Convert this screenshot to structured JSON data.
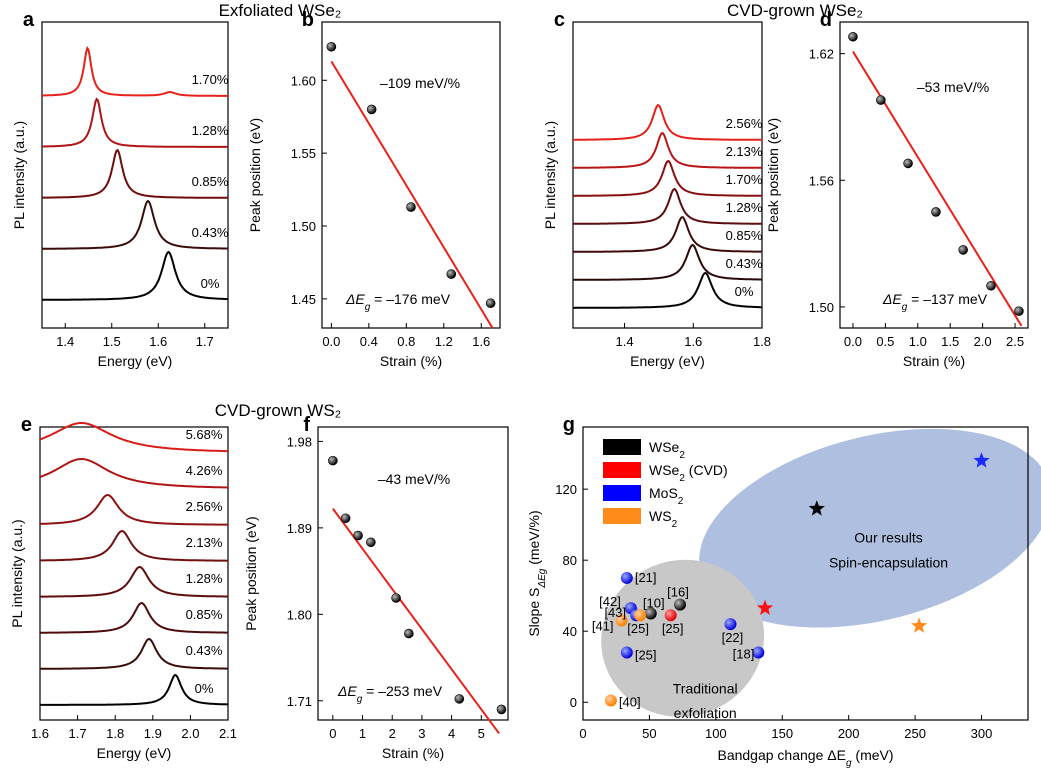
{
  "chart_data": [
    {
      "panel": "a",
      "group_title": "Exfoliated WSe₂",
      "type": "line",
      "xlabel": "Energy (eV)",
      "ylabel": "PL intensity (a.u.)",
      "xlim": [
        1.35,
        1.75
      ],
      "xticks": [
        1.4,
        1.5,
        1.6,
        1.7
      ],
      "series": [
        {
          "name": "0%",
          "color": "#000000",
          "peak_eV": 1.622,
          "width": 0.018,
          "shoulder": null
        },
        {
          "name": "0.43%",
          "color": "#3a0c0a",
          "peak_eV": 1.578,
          "width": 0.017,
          "shoulder": null
        },
        {
          "name": "0.85%",
          "color": "#6e0d0d",
          "peak_eV": 1.512,
          "width": 0.014,
          "shoulder": null
        },
        {
          "name": "1.28%",
          "color": "#b01414",
          "peak_eV": 1.468,
          "width": 0.012,
          "shoulder": null
        },
        {
          "name": "1.70%",
          "color": "#e8221a",
          "peak_eV": 1.448,
          "width": 0.01,
          "shoulder": 1.625
        }
      ]
    },
    {
      "panel": "b",
      "type": "scatter",
      "xlabel": "Strain (%)",
      "ylabel": "Peak position (eV)",
      "xlim": [
        -0.1,
        1.8
      ],
      "ylim": [
        1.43,
        1.64
      ],
      "xticks": [
        0.0,
        0.4,
        0.8,
        1.2,
        1.6
      ],
      "yticks": [
        1.45,
        1.5,
        1.55,
        1.6
      ],
      "x": [
        0,
        0.43,
        0.85,
        1.28,
        1.7
      ],
      "y": [
        1.623,
        1.58,
        1.513,
        1.467,
        1.447
      ],
      "fit": {
        "x": [
          0,
          1.72
        ],
        "y": [
          1.613,
          1.43
        ]
      },
      "slope_label": "–109 meV/%",
      "delta_prefix": "ΔE",
      "delta_sub": "g",
      "delta_value": " = –176 meV"
    },
    {
      "panel": "c",
      "group_title": "CVD-grown WSe₂",
      "type": "line",
      "xlabel": "Energy (eV)",
      "ylabel": "PL intensity (a.u.)",
      "xlim": [
        1.25,
        1.8
      ],
      "xticks": [
        1.4,
        1.6,
        1.8
      ],
      "series": [
        {
          "name": "0%",
          "color": "#000000",
          "peak_eV": 1.635,
          "width": 0.025
        },
        {
          "name": "0.43%",
          "color": "#2a0a08",
          "peak_eV": 1.598,
          "width": 0.024
        },
        {
          "name": "0.85%",
          "color": "#3f0b0a",
          "peak_eV": 1.568,
          "width": 0.023
        },
        {
          "name": "1.28%",
          "color": "#5c0c0c",
          "peak_eV": 1.545,
          "width": 0.022
        },
        {
          "name": "1.70%",
          "color": "#8a1010",
          "peak_eV": 1.527,
          "width": 0.022
        },
        {
          "name": "2.13%",
          "color": "#b81616",
          "peak_eV": 1.51,
          "width": 0.021
        },
        {
          "name": "2.56%",
          "color": "#e3221a",
          "peak_eV": 1.498,
          "width": 0.021
        }
      ]
    },
    {
      "panel": "d",
      "type": "scatter",
      "xlabel": "Strain (%)",
      "ylabel": "Peak position (eV)",
      "xlim": [
        -0.2,
        2.7
      ],
      "ylim": [
        1.49,
        1.635
      ],
      "xticks": [
        0.0,
        0.5,
        1.0,
        1.5,
        2.0,
        2.5
      ],
      "yticks": [
        1.5,
        1.56,
        1.62
      ],
      "x": [
        0,
        0.43,
        0.85,
        1.28,
        1.7,
        2.13,
        2.56
      ],
      "y": [
        1.628,
        1.598,
        1.568,
        1.545,
        1.527,
        1.51,
        1.498
      ],
      "fit": {
        "x": [
          0,
          2.6
        ],
        "y": [
          1.621,
          1.491
        ]
      },
      "slope_label": "–53 meV/%",
      "delta_prefix": "ΔE",
      "delta_sub": "g",
      "delta_value": " = –137 meV"
    },
    {
      "panel": "e",
      "group_title": "CVD-grown WS₂",
      "type": "line",
      "xlabel": "Energy (eV)",
      "ylabel": "PL intensity (a.u.)",
      "xlim": [
        1.6,
        2.1
      ],
      "xticks": [
        1.6,
        1.7,
        1.8,
        1.9,
        2.0,
        2.1
      ],
      "series": [
        {
          "name": "0%",
          "color": "#000000",
          "peak_eV": 1.96,
          "width": 0.02
        },
        {
          "name": "0.43%",
          "color": "#3a0c0a",
          "peak_eV": 1.89,
          "width": 0.025
        },
        {
          "name": "0.85%",
          "color": "#4e0b0b",
          "peak_eV": 1.87,
          "width": 0.027
        },
        {
          "name": "1.28%",
          "color": "#5e0c0c",
          "peak_eV": 1.865,
          "width": 0.03
        },
        {
          "name": "2.13%",
          "color": "#701010",
          "peak_eV": 1.818,
          "width": 0.03
        },
        {
          "name": "2.56%",
          "color": "#8f1212",
          "peak_eV": 1.78,
          "width": 0.035
        },
        {
          "name": "4.26%",
          "color": "#b01515",
          "peak_eV": 1.71,
          "width": 0.09
        },
        {
          "name": "5.68%",
          "color": "#d81c18",
          "peak_eV": 1.71,
          "width": 0.1
        }
      ]
    },
    {
      "panel": "f",
      "type": "scatter",
      "xlabel": "Strain (%)",
      "ylabel": "Peak position (eV)",
      "xlim": [
        -0.5,
        5.9
      ],
      "ylim": [
        1.69,
        1.995
      ],
      "xticks": [
        0,
        1,
        2,
        3,
        4,
        5
      ],
      "yticks": [
        1.71,
        1.8,
        1.89,
        1.98
      ],
      "x": [
        0,
        0.43,
        0.85,
        1.28,
        2.13,
        2.56,
        4.26,
        5.68
      ],
      "y": [
        1.96,
        1.9,
        1.882,
        1.875,
        1.817,
        1.78,
        1.712,
        1.701
      ],
      "fit": {
        "x": [
          0,
          5.6
        ],
        "y": [
          1.91,
          1.676
        ]
      },
      "slope_label": "–43 meV/%",
      "delta_prefix": "ΔE",
      "delta_sub": "g",
      "delta_value": " = –253 meV"
    },
    {
      "panel": "g",
      "type": "scatter",
      "xlabel_prefix": "Bandgap change ΔE",
      "xlabel_sub": "g",
      "xlabel_suffix": " (meV)",
      "ylabel_prefix": "Slope S",
      "ylabel_sub": "ΔEg",
      "ylabel_suffix": " (meV/%)",
      "xlim": [
        0,
        335
      ],
      "ylim": [
        -10,
        155
      ],
      "xticks": [
        0,
        50,
        100,
        150,
        200,
        250,
        300
      ],
      "yticks": [
        0,
        40,
        80,
        120
      ],
      "legend": [
        {
          "name": "WSe",
          "sub": "2",
          "suffix": "",
          "color": "#000000"
        },
        {
          "name": "WSe",
          "sub": "2",
          "suffix": " (CVD)",
          "color": "#ff0000"
        },
        {
          "name": "MoS",
          "sub": "2",
          "suffix": "",
          "color": "#0000ff"
        },
        {
          "name": "WS",
          "sub": "2",
          "suffix": "",
          "color": "#ff8c1a"
        }
      ],
      "regions": [
        {
          "label1": "Our results",
          "label2": "Spin-encapsulation",
          "color": "#aebfe0"
        },
        {
          "label1": "Traditional",
          "label2": "exfoliation",
          "color": "#c8c8c8"
        }
      ],
      "literature": [
        {
          "x": 33,
          "y": 70,
          "material": "MoS2",
          "ref": "[21]"
        },
        {
          "x": 36,
          "y": 53,
          "material": "MoS2",
          "ref": "[42]"
        },
        {
          "x": 40,
          "y": 49,
          "material": "MoS2",
          "ref": "[43]"
        },
        {
          "x": 51,
          "y": 50,
          "material": "WSe2",
          "ref": "[10]"
        },
        {
          "x": 29,
          "y": 46,
          "material": "WS2",
          "ref": "[41]"
        },
        {
          "x": 43,
          "y": 49,
          "material": "WS2",
          "ref": "[25]"
        },
        {
          "x": 66,
          "y": 49,
          "material": "WSe2 (CVD)",
          "ref": "[25]"
        },
        {
          "x": 73,
          "y": 55,
          "material": "WSe2",
          "ref": "[16]"
        },
        {
          "x": 33,
          "y": 28,
          "material": "MoS2",
          "ref": "[25]"
        },
        {
          "x": 111,
          "y": 44,
          "material": "MoS2",
          "ref": "[22]"
        },
        {
          "x": 132,
          "y": 28,
          "material": "MoS2",
          "ref": "[18]"
        },
        {
          "x": 21,
          "y": 1,
          "material": "WS2",
          "ref": "[40]"
        }
      ],
      "ours": [
        {
          "x": 176,
          "y": 109,
          "material": "WSe2"
        },
        {
          "x": 137,
          "y": 53,
          "material": "WSe2 (CVD)"
        },
        {
          "x": 300,
          "y": 136,
          "material": "MoS2"
        },
        {
          "x": 253,
          "y": 43,
          "material": "WS2"
        }
      ]
    }
  ]
}
